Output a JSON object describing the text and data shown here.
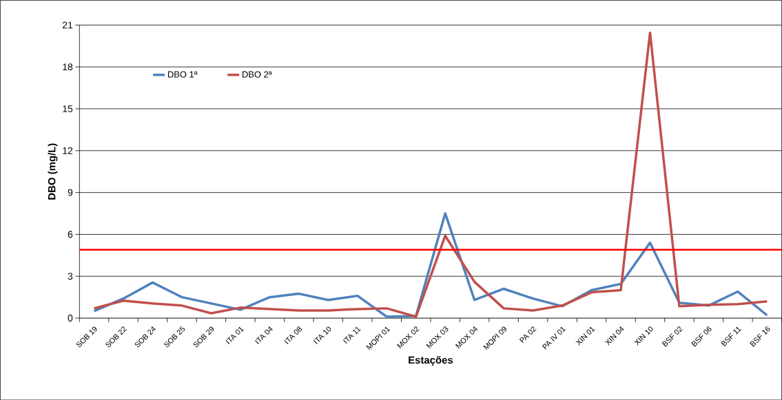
{
  "chart_data": {
    "type": "line",
    "xlabel": "Estações",
    "ylabel": "DBO (mg/L)",
    "categories": [
      "SOB 19",
      "SOB 22",
      "SOB 24",
      "SOB 25",
      "SOB 29",
      "ITA 01",
      "ITA 04",
      "ITA 08",
      "ITA 10",
      "ITA 11",
      "MOPI 01",
      "MOX 02",
      "MOX 03",
      "MOX 04",
      "MOPI 09",
      "PA 02",
      "PA IV 01",
      "XIN 01",
      "XIN 04",
      "XIN 10",
      "BSF 02",
      "BSF 06",
      "BSF 11",
      "BSF 16"
    ],
    "series": [
      {
        "name": "DBO 1ª",
        "color": "#4f81bd",
        "values": [
          0.5,
          1.4,
          2.55,
          1.5,
          1.05,
          0.6,
          1.5,
          1.75,
          1.3,
          1.6,
          0.1,
          0.15,
          7.5,
          1.3,
          2.1,
          1.4,
          0.85,
          2.0,
          2.45,
          5.4,
          1.1,
          0.9,
          1.9,
          0.2
        ]
      },
      {
        "name": "DBO 2ª",
        "color": "#c0504d",
        "values": [
          0.7,
          1.25,
          1.05,
          0.9,
          0.35,
          0.75,
          0.65,
          0.55,
          0.55,
          0.65,
          0.7,
          0.1,
          5.9,
          2.6,
          0.7,
          0.55,
          0.9,
          1.85,
          2.0,
          20.45,
          0.85,
          0.95,
          1.0,
          1.2
        ]
      }
    ],
    "ref_lines": [
      {
        "axis": "y",
        "value": 4.9,
        "color": "#ff0000"
      }
    ],
    "ylim": [
      0,
      21
    ],
    "yticks": [
      0,
      3,
      6,
      9,
      12,
      15,
      18,
      21
    ],
    "grid": "y",
    "legend": "top left",
    "marker": "none",
    "line_style": "solid"
  }
}
